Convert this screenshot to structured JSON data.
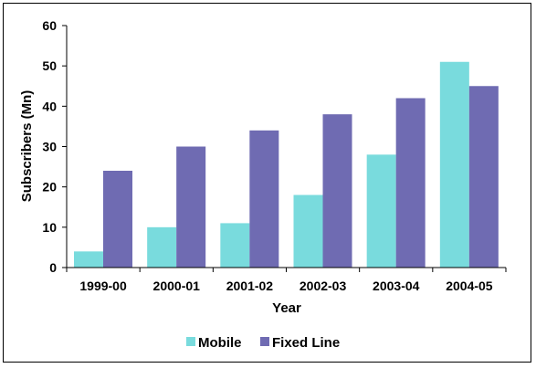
{
  "chart_data": {
    "type": "bar",
    "title": "",
    "xlabel": "Year",
    "ylabel": "Subscribers (Mn)",
    "categories": [
      "1999-00",
      "2000-01",
      "2001-02",
      "2002-03",
      "2003-04",
      "2004-05"
    ],
    "series": [
      {
        "name": "Mobile",
        "values": [
          4,
          10,
          11,
          18,
          28,
          51
        ],
        "color": "#79DBDD"
      },
      {
        "name": "Fixed Line",
        "values": [
          24,
          30,
          34,
          38,
          42,
          45
        ],
        "color": "#6F6BB2"
      }
    ],
    "ylim": [
      0,
      60
    ],
    "yticks": [
      0,
      10,
      20,
      30,
      40,
      50,
      60
    ],
    "grid": false,
    "legend": "bottom"
  }
}
